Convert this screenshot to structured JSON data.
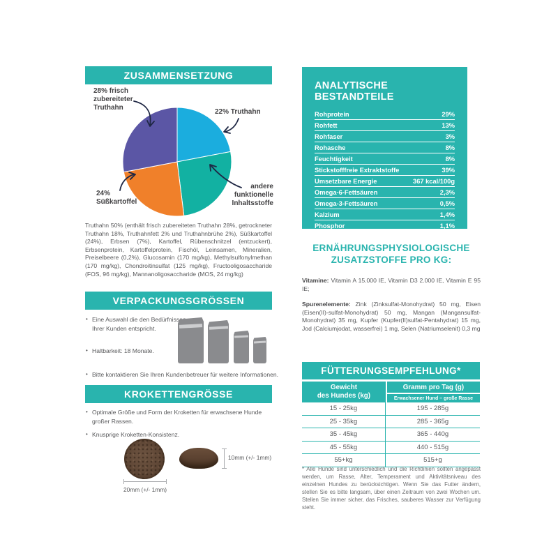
{
  "colors": {
    "teal": "#29b4ae",
    "pie_cyan": "#1badde",
    "pie_teal": "#12b1a2",
    "pie_orange": "#f0802a",
    "pie_purple": "#5b56a5",
    "arrow_navy": "#1f2744",
    "bag_gray": "#8a8b8e",
    "kibble_brown": "#5f4736",
    "body_text": "#58595b"
  },
  "chart_data": {
    "type": "pie",
    "title": "ZUSAMMENSETZUNG",
    "legend_position": "around",
    "slices": [
      {
        "label": "22% Truthahn",
        "value": 22,
        "color": "#1badde"
      },
      {
        "label": "andere funktionelle Inhaltsstoffe",
        "value": 26,
        "color": "#12b1a2"
      },
      {
        "label": "24% Süßkartoffel",
        "value": 24,
        "color": "#f0802a"
      },
      {
        "label": "28% frisch zubereiteter Truthahn",
        "value": 28,
        "color": "#5b56a5"
      }
    ]
  },
  "left": {
    "composition": {
      "title": "ZUSAMMENSETZUNG",
      "ingredients": "Truthahn 50% (enthält frisch zubereiteten Truthahn 28%, getrockneter Truthahn 18%, Truthahnfett 2% und Truthahnbrühe 2%), Süßkartoffel (24%), Erbsen (7%), Kartoffel, Rübenschnitzel (entzuckert), Erbsenprotein, Kartoffelprotein, Fischöl, Leinsamen, Mineralien, Preiselbeere (0,2%), Glucosamin (170 mg/kg), Methylsulfonylmethan (170 mg/kg), Chondroitinsulfat (125 mg/kg), Fructooligosaccharide (FOS, 96 mg/kg), Mannanoligosaccharide (MOS, 24 mg/kg)"
    },
    "packaging": {
      "title": "VERPACKUNGSGRÖSSEN",
      "bullets": [
        "Eine Auswahl die den Bedürfnissen Ihrer Kunden entspricht.",
        "Haltbarkeit: 18 Monate.",
        "Bitte kontaktieren Sie Ihren Kundenbetreuer für weitere Informationen."
      ]
    },
    "kibble": {
      "title": "KROKETTENGRÖSSE",
      "bullets": [
        "Optimale Größe und Form der Kroketten für erwachsene Hunde großer Rassen.",
        "Knusprige Kroketten-Konsistenz."
      ],
      "width_label": "20mm (+/- 1mm)",
      "height_label": "10mm (+/- 1mm)"
    }
  },
  "right": {
    "analytical": {
      "title": "ANALYTISCHE BESTANDTEILE",
      "rows": [
        {
          "label": "Rohprotein",
          "value": "29%"
        },
        {
          "label": "Rohfett",
          "value": "13%"
        },
        {
          "label": "Rohfaser",
          "value": "3%"
        },
        {
          "label": "Rohasche",
          "value": "8%"
        },
        {
          "label": "Feuchtigkeit",
          "value": "8%"
        },
        {
          "label": "Stickstofffreie Extraktstoffe",
          "value": "39%"
        },
        {
          "label": "Umsetzbare Energie",
          "value": "367 kcal/100g"
        },
        {
          "label": "Omega-6-Fettsäuren",
          "value": "2,3%"
        },
        {
          "label": "Omega-3-Fettsäuren",
          "value": "0,5%"
        },
        {
          "label": "Kalzium",
          "value": "1,4%"
        },
        {
          "label": "Phosphor",
          "value": "1,1%"
        }
      ]
    },
    "additives": {
      "title_line1": "ERNÄHRUNGSPHYSIOLOGISCHE",
      "title_line2": "ZUSATZSTOFFE PRO KG:",
      "vitamins_label": "Vitamine:",
      "vitamins_text": " Vitamin A 15.000 IE, Vitamin D3 2.000 IE, Vitamin E 95 IE;",
      "trace_label": "Spurenelemente:",
      "trace_text": " Zink (Zinksulfat-Monohydrat) 50 mg, Eisen (Eisen(II)-sulfat-Monohydrat) 50 mg, Mangan (Mangansulfat-Monohydrat) 35 mg, Kupfer (Kupfer(II)sulfat-Pentahydrat) 15 mg, Jod (Calciumjodat, wasserfrei) 1 mg, Selen (Natriumselenit) 0,3 mg"
    },
    "feeding": {
      "title": "FÜTTERUNGSEMPFEHLUNG*",
      "col1_header_line1": "Gewicht",
      "col1_header_line2": "des Hundes (kg)",
      "col2_header": "Gramm pro Tag (g)",
      "col2_subheader": "Erwachsener Hund – große Rasse",
      "rows": [
        [
          "15 - 25kg",
          "195 - 285g"
        ],
        [
          "25 - 35kg",
          "285 - 365g"
        ],
        [
          "35 - 45kg",
          "365 - 440g"
        ],
        [
          "45 - 55kg",
          "440 - 515g"
        ],
        [
          "55+kg",
          "515+g"
        ]
      ],
      "footnote": "* Alle Hunde sind unterschiedlich und die Richtlinien sollten angepasst werden, um Rasse, Alter, Temperament und Aktivitätsniveau des einzelnen Hundes zu berücksichtigen. Wenn Sie das Futter ändern, stellen Sie es bitte langsam, über einen Zeitraum von zwei Wochen um. Stellen Sie immer sicher, das Frisches, sauberes Wasser zur Verfügung steht."
    }
  }
}
